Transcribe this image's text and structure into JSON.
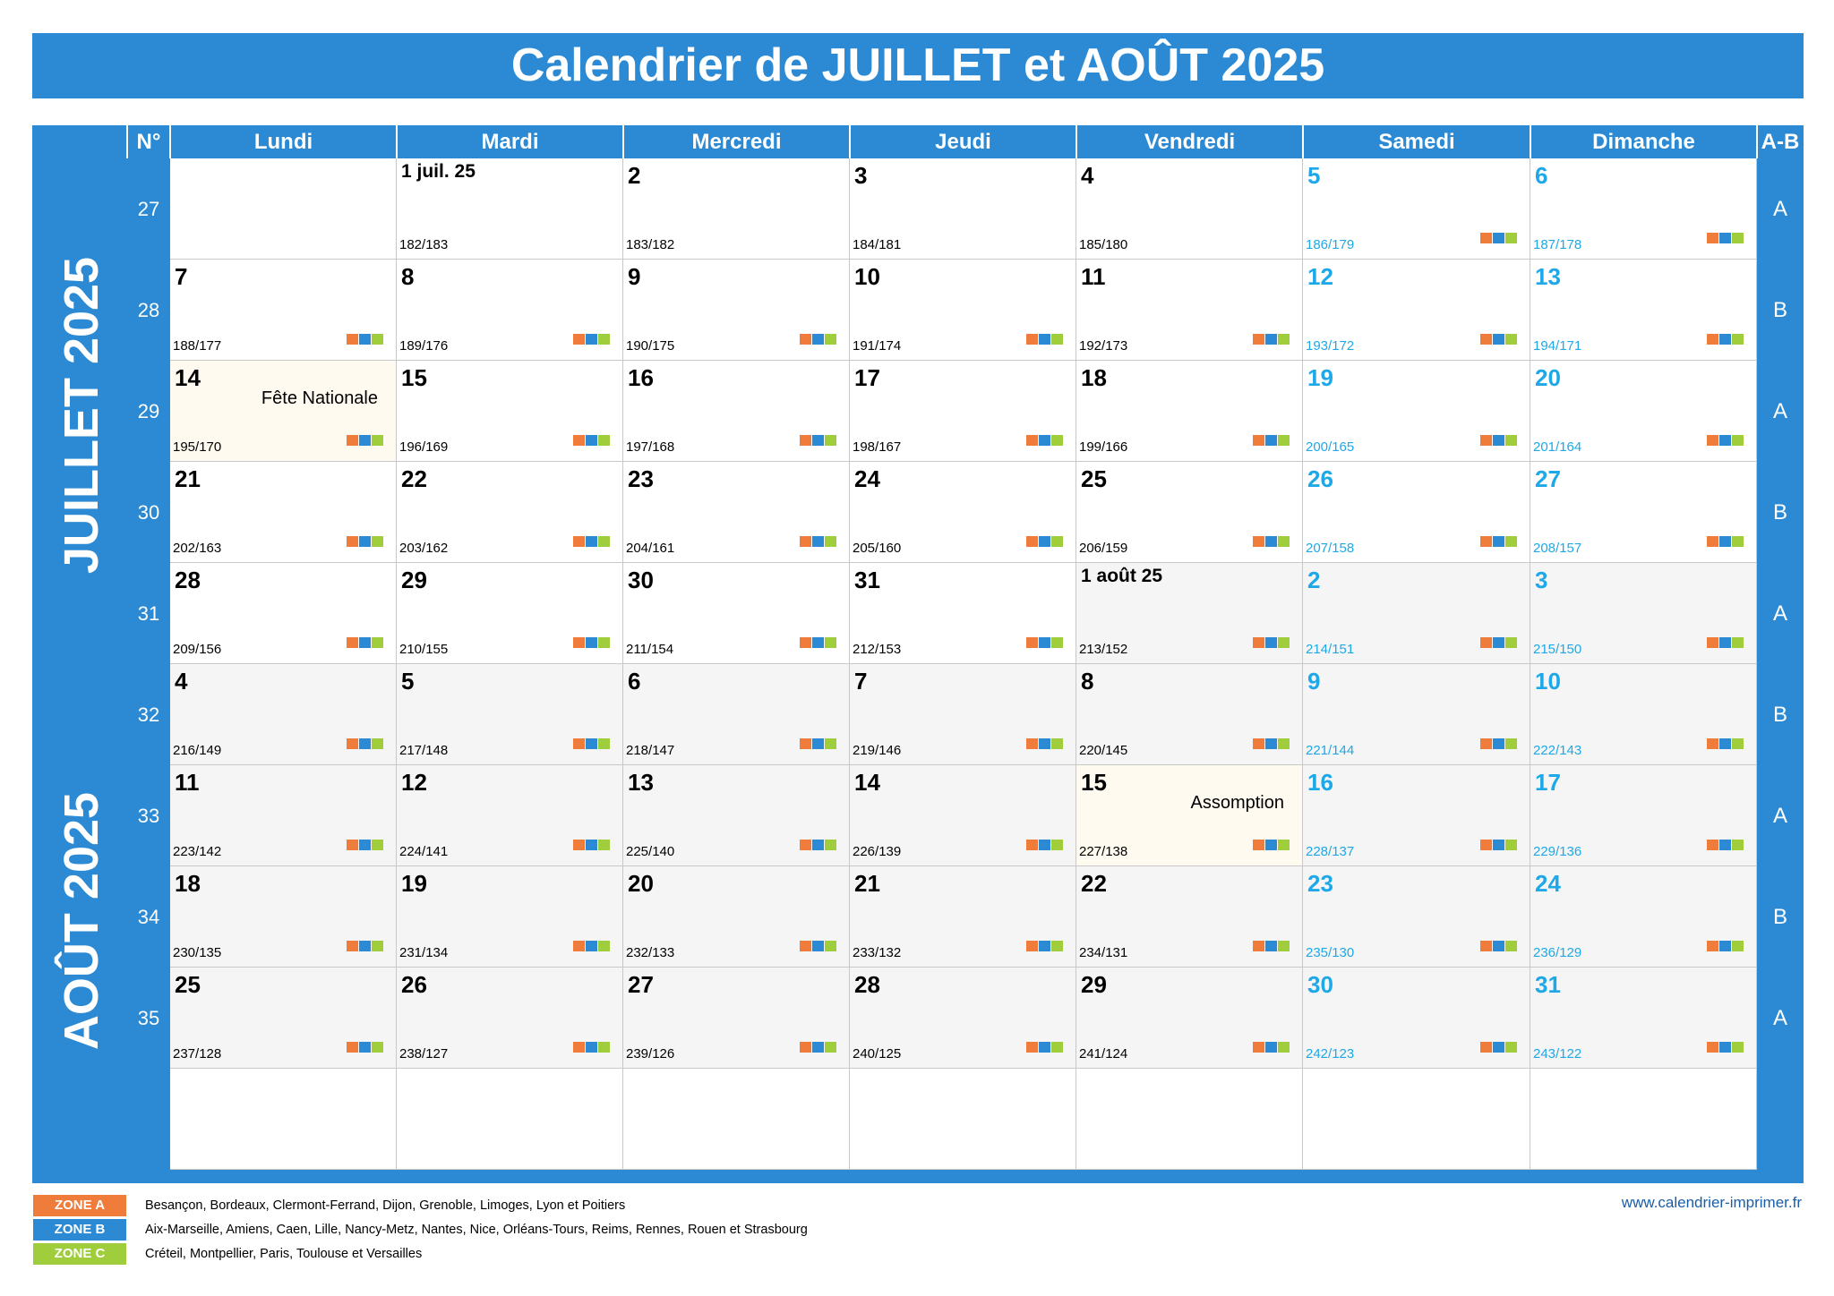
{
  "title": "Calendrier de JUILLET et AOÛT 2025",
  "headers": {
    "num": "N°",
    "days": [
      "Lundi",
      "Mardi",
      "Mercredi",
      "Jeudi",
      "Vendredi",
      "Samedi",
      "Dimanche"
    ],
    "ab": "A-B"
  },
  "months": {
    "july": "JUILLET 2025",
    "august": "AOÛT 2025"
  },
  "colors": {
    "accent": "#2b8ad3",
    "weekend": "#1ea8e8",
    "zone_a": "#f07c3c",
    "zone_b": "#2b8ad3",
    "zone_c": "#9fcd3b",
    "august_bg": "#f5f5f5",
    "holiday_bg": "#fffaf0"
  },
  "weeks": [
    {
      "num": "27",
      "ab": "A",
      "days": [
        null,
        {
          "label": "1 juil. 25",
          "info": "182/183",
          "first": true
        },
        {
          "label": "2",
          "info": "183/182"
        },
        {
          "label": "3",
          "info": "184/181"
        },
        {
          "label": "4",
          "info": "185/180"
        },
        {
          "label": "5",
          "info": "186/179",
          "zones": true
        },
        {
          "label": "6",
          "info": "187/178",
          "zones": true
        }
      ]
    },
    {
      "num": "28",
      "ab": "B",
      "days": [
        {
          "label": "7",
          "info": "188/177",
          "zones": true
        },
        {
          "label": "8",
          "info": "189/176",
          "zones": true
        },
        {
          "label": "9",
          "info": "190/175",
          "zones": true
        },
        {
          "label": "10",
          "info": "191/174",
          "zones": true
        },
        {
          "label": "11",
          "info": "192/173",
          "zones": true
        },
        {
          "label": "12",
          "info": "193/172",
          "zones": true
        },
        {
          "label": "13",
          "info": "194/171",
          "zones": true
        }
      ]
    },
    {
      "num": "29",
      "ab": "A",
      "days": [
        {
          "label": "14",
          "info": "195/170",
          "zones": true,
          "holiday": "Fête Nationale"
        },
        {
          "label": "15",
          "info": "196/169",
          "zones": true
        },
        {
          "label": "16",
          "info": "197/168",
          "zones": true
        },
        {
          "label": "17",
          "info": "198/167",
          "zones": true
        },
        {
          "label": "18",
          "info": "199/166",
          "zones": true
        },
        {
          "label": "19",
          "info": "200/165",
          "zones": true
        },
        {
          "label": "20",
          "info": "201/164",
          "zones": true
        }
      ]
    },
    {
      "num": "30",
      "ab": "B",
      "days": [
        {
          "label": "21",
          "info": "202/163",
          "zones": true
        },
        {
          "label": "22",
          "info": "203/162",
          "zones": true
        },
        {
          "label": "23",
          "info": "204/161",
          "zones": true
        },
        {
          "label": "24",
          "info": "205/160",
          "zones": true
        },
        {
          "label": "25",
          "info": "206/159",
          "zones": true
        },
        {
          "label": "26",
          "info": "207/158",
          "zones": true
        },
        {
          "label": "27",
          "info": "208/157",
          "zones": true
        }
      ]
    },
    {
      "num": "31",
      "ab": "A",
      "days": [
        {
          "label": "28",
          "info": "209/156",
          "zones": true
        },
        {
          "label": "29",
          "info": "210/155",
          "zones": true
        },
        {
          "label": "30",
          "info": "211/154",
          "zones": true
        },
        {
          "label": "31",
          "info": "212/153",
          "zones": true
        },
        {
          "label": "1 août 25",
          "info": "213/152",
          "zones": true,
          "first": true,
          "aug": true
        },
        {
          "label": "2",
          "info": "214/151",
          "zones": true,
          "aug": true
        },
        {
          "label": "3",
          "info": "215/150",
          "zones": true,
          "aug": true
        }
      ]
    },
    {
      "num": "32",
      "ab": "B",
      "days": [
        {
          "label": "4",
          "info": "216/149",
          "zones": true,
          "aug": true
        },
        {
          "label": "5",
          "info": "217/148",
          "zones": true,
          "aug": true
        },
        {
          "label": "6",
          "info": "218/147",
          "zones": true,
          "aug": true
        },
        {
          "label": "7",
          "info": "219/146",
          "zones": true,
          "aug": true
        },
        {
          "label": "8",
          "info": "220/145",
          "zones": true,
          "aug": true
        },
        {
          "label": "9",
          "info": "221/144",
          "zones": true,
          "aug": true
        },
        {
          "label": "10",
          "info": "222/143",
          "zones": true,
          "aug": true
        }
      ]
    },
    {
      "num": "33",
      "ab": "A",
      "days": [
        {
          "label": "11",
          "info": "223/142",
          "zones": true,
          "aug": true
        },
        {
          "label": "12",
          "info": "224/141",
          "zones": true,
          "aug": true
        },
        {
          "label": "13",
          "info": "225/140",
          "zones": true,
          "aug": true
        },
        {
          "label": "14",
          "info": "226/139",
          "zones": true,
          "aug": true
        },
        {
          "label": "15",
          "info": "227/138",
          "zones": true,
          "aug": true,
          "holiday": "Assomption"
        },
        {
          "label": "16",
          "info": "228/137",
          "zones": true,
          "aug": true
        },
        {
          "label": "17",
          "info": "229/136",
          "zones": true,
          "aug": true
        }
      ]
    },
    {
      "num": "34",
      "ab": "B",
      "days": [
        {
          "label": "18",
          "info": "230/135",
          "zones": true,
          "aug": true
        },
        {
          "label": "19",
          "info": "231/134",
          "zones": true,
          "aug": true
        },
        {
          "label": "20",
          "info": "232/133",
          "zones": true,
          "aug": true
        },
        {
          "label": "21",
          "info": "233/132",
          "zones": true,
          "aug": true
        },
        {
          "label": "22",
          "info": "234/131",
          "zones": true,
          "aug": true
        },
        {
          "label": "23",
          "info": "235/130",
          "zones": true,
          "aug": true
        },
        {
          "label": "24",
          "info": "236/129",
          "zones": true,
          "aug": true
        }
      ]
    },
    {
      "num": "35",
      "ab": "A",
      "days": [
        {
          "label": "25",
          "info": "237/128",
          "zones": true,
          "aug": true
        },
        {
          "label": "26",
          "info": "238/127",
          "zones": true,
          "aug": true
        },
        {
          "label": "27",
          "info": "239/126",
          "zones": true,
          "aug": true
        },
        {
          "label": "28",
          "info": "240/125",
          "zones": true,
          "aug": true
        },
        {
          "label": "29",
          "info": "241/124",
          "zones": true,
          "aug": true
        },
        {
          "label": "30",
          "info": "242/123",
          "zones": true,
          "aug": true
        },
        {
          "label": "31",
          "info": "243/122",
          "zones": true,
          "aug": true
        }
      ]
    }
  ],
  "legend": [
    {
      "zone": "ZONE A",
      "cities": "Besançon, Bordeaux, Clermont-Ferrand, Dijon, Grenoble, Limoges, Lyon et Poitiers"
    },
    {
      "zone": "ZONE B",
      "cities": "Aix-Marseille, Amiens, Caen, Lille, Nancy-Metz, Nantes, Nice, Orléans-Tours, Reims, Rennes, Rouen et Strasbourg"
    },
    {
      "zone": "ZONE C",
      "cities": "Créteil, Montpellier, Paris, Toulouse et Versailles"
    }
  ],
  "website": "www.calendrier-imprimer.fr"
}
